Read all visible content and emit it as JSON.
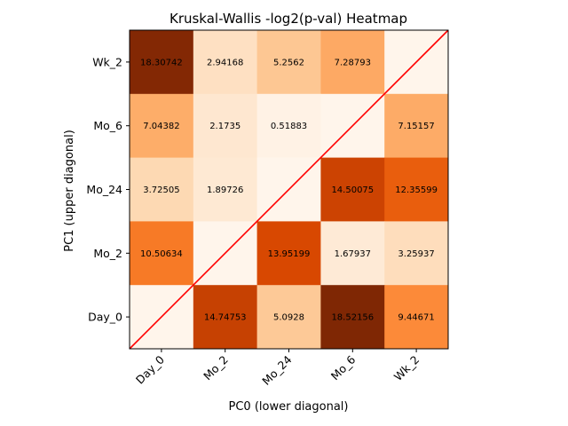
{
  "chart_data": {
    "type": "heatmap",
    "title": "Kruskal-Wallis -log2(p-val) Heatmap",
    "xlabel": "PC0 (lower diagonal)",
    "ylabel": "PC1 (upper diagonal)",
    "x_categories": [
      "Day_0",
      "Mo_2",
      "Mo_24",
      "Mo_6",
      "Wk_2"
    ],
    "y_categories_top_to_bottom": [
      "Wk_2",
      "Mo_6",
      "Mo_24",
      "Mo_2",
      "Day_0"
    ],
    "colormap": "Oranges",
    "value_range": [
      0,
      18.52156
    ],
    "diagonal_line_color": "#ff0000",
    "rows": [
      {
        "y": "Wk_2",
        "values": [
          18.30742,
          2.94168,
          5.2562,
          7.28793,
          null
        ],
        "labels": [
          "18.30742",
          "2.94168",
          "5.2562",
          "7.28793",
          ""
        ]
      },
      {
        "y": "Mo_6",
        "values": [
          7.04382,
          2.1735,
          0.51883,
          null,
          7.15157
        ],
        "labels": [
          "7.04382",
          "2.1735",
          "0.51883",
          "",
          "7.15157"
        ]
      },
      {
        "y": "Mo_24",
        "values": [
          3.72505,
          1.89726,
          null,
          14.50075,
          12.35599
        ],
        "labels": [
          "3.72505",
          "1.89726",
          "",
          "14.50075",
          "12.35599"
        ]
      },
      {
        "y": "Mo_2",
        "values": [
          10.50634,
          null,
          13.95199,
          1.67937,
          3.25937
        ],
        "labels": [
          "10.50634",
          "",
          "13.95199",
          "1.67937",
          "3.25937"
        ]
      },
      {
        "y": "Day_0",
        "values": [
          null,
          14.74753,
          5.0928,
          18.52156,
          9.44671
        ],
        "labels": [
          "",
          "14.74753",
          "5.0928",
          "18.52156",
          "9.44671"
        ]
      }
    ]
  }
}
